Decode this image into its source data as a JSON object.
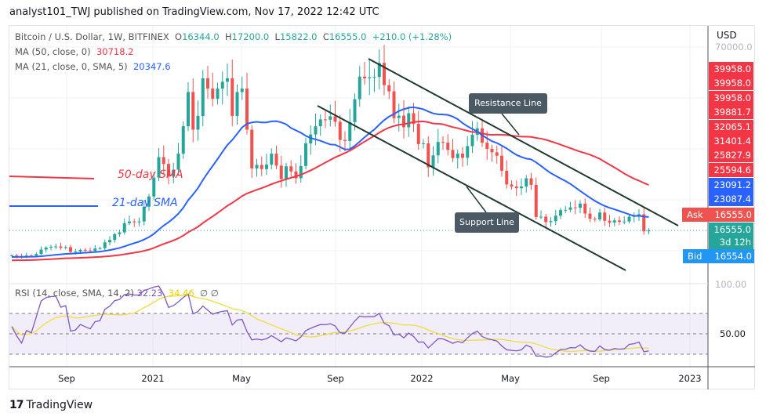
{
  "header": {
    "published": "analyst101_TWJ published on TradingView.com, Nov 17, 2022 12:42 UTC"
  },
  "legend": {
    "symbol": "Bitcoin / U.S. Dollar, 1W, BITFINEX",
    "o_label": "O",
    "o": "16344.0",
    "h_label": "H",
    "h": "17200.0",
    "l_label": "L",
    "l": "15822.0",
    "c_label": "C",
    "c": "16555.0",
    "change": "+210.0 (+1.28%)",
    "ma50_label": "MA (50, close, 0)",
    "ma50_value": "30718.2",
    "ma21_label": "MA (21, close, 0, SMA, 5)",
    "ma21_value": "20347.6",
    "rsi_label": "RSI (14, close, SMA, 14, 2)",
    "rsi_value": "32.23",
    "rsi_sma_value": "34.46",
    "rsi_extra1": "∅",
    "rsi_extra2": "∅"
  },
  "price_axis": {
    "currency": "USD",
    "top_tick": "70000.0",
    "red_labels": [
      "39958.0",
      "39958.0",
      "39958.0",
      "39881.7",
      "32065.1",
      "31401.4",
      "25827.9",
      "25594.6"
    ],
    "blue_labels": [
      "23091.2",
      "23087.4"
    ],
    "ask_label": "Ask",
    "ask": "16555.0",
    "last": "16555.0",
    "countdown": "3d 12h",
    "bid_label": "Bid",
    "bid": "16554.0"
  },
  "rsi_axis": {
    "t100": "100.00",
    "t50": "50.00"
  },
  "annotations": {
    "resistance": "Resistance Line",
    "support": "Support Line",
    "sma50": "50-day SMA",
    "sma21": "21-day SMA"
  },
  "footer": {
    "brand": "TradingView",
    "logo": "TV"
  },
  "colors": {
    "up": "#26a69a",
    "down": "#ef5350",
    "ma50": "#f23645",
    "ma21": "#2962ff",
    "rsi": "#7e57c2",
    "rsi_sma": "#f0dc3a"
  },
  "chart_data": {
    "type": "candlestick",
    "timeframe": "1W",
    "x_ticks": [
      "Sep",
      "2021",
      "May",
      "Sep",
      "2022",
      "May",
      "Sep",
      "2023"
    ],
    "closes": [
      9300,
      9150,
      9000,
      9250,
      9200,
      9700,
      11000,
      11600,
      11800,
      11900,
      11500,
      11700,
      10300,
      10400,
      10900,
      10750,
      10600,
      11300,
      11400,
      13100,
      13800,
      15500,
      16000,
      18700,
      19200,
      19100,
      19200,
      23500,
      26500,
      32000,
      38000,
      36000,
      32300,
      34300,
      39000,
      47000,
      57000,
      46000,
      50000,
      61000,
      58000,
      55000,
      58000,
      60000,
      61000,
      50000,
      57000,
      58000,
      46000,
      34700,
      35700,
      34500,
      35800,
      39000,
      35500,
      31600,
      35300,
      33800,
      31800,
      35400,
      42000,
      44600,
      47000,
      49000,
      48900,
      49900,
      48300,
      43000,
      42700,
      48200,
      54900,
      61500,
      61000,
      61300,
      61400,
      65500,
      59000,
      57200,
      49400,
      50100,
      46700,
      50800,
      47700,
      41800,
      42000,
      35000,
      38500,
      42400,
      42200,
      40100,
      37700,
      39000,
      37800,
      41200,
      44500,
      46400,
      42200,
      40400,
      39400,
      38400,
      34000,
      30000,
      29400,
      28900,
      29400,
      31800,
      29900,
      20500,
      20600,
      19000,
      19300,
      20900,
      22500,
      22600,
      23300,
      23200,
      24400,
      21500,
      20000,
      19800,
      21800,
      19400,
      18900,
      19500,
      19100,
      19200,
      20600,
      20800,
      21300,
      16300,
      16555
    ],
    "moving_averages": [
      {
        "name": "MA 50",
        "period": 50
      },
      {
        "name": "MA 21",
        "period": 21
      }
    ],
    "rsi": {
      "period": 14,
      "sma": 14,
      "levels": [
        70,
        50,
        30
      ]
    },
    "price_scale": "linear"
  }
}
